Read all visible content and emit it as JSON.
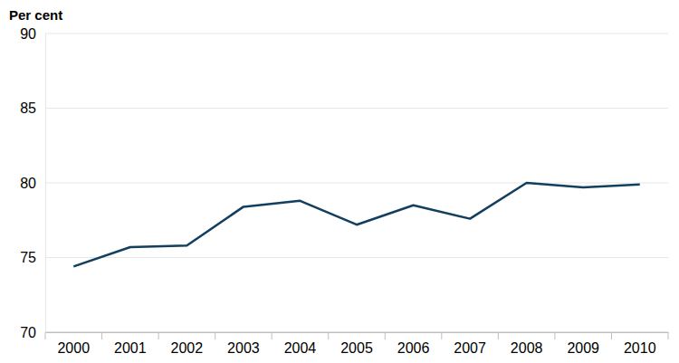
{
  "chart_data": {
    "type": "line",
    "y_label": "Per cent",
    "categories": [
      "2000",
      "2001",
      "2002",
      "2003",
      "2004",
      "2005",
      "2006",
      "2007",
      "2008",
      "2009",
      "2010"
    ],
    "values": [
      74.4,
      75.7,
      75.8,
      78.4,
      78.8,
      77.2,
      78.5,
      77.6,
      80.0,
      79.7,
      79.9
    ],
    "color": "#123f5e",
    "ylim": [
      70,
      90
    ],
    "yticks": [
      70,
      75,
      80,
      85,
      90
    ],
    "grid": true
  }
}
